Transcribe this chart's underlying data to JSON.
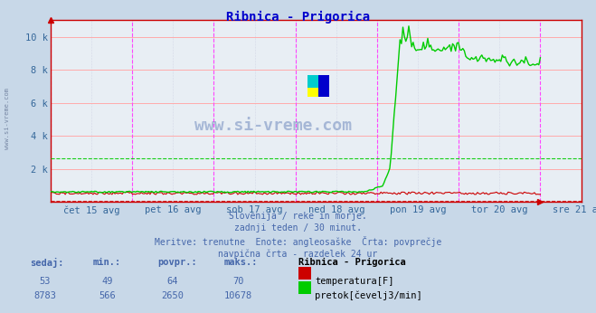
{
  "title": "Ribnica - Prigorica",
  "title_color": "#0000cc",
  "bg_color": "#c8d8e8",
  "plot_bg_color": "#e8eef4",
  "x_labels": [
    "čet 15 avg",
    "pet 16 avg",
    "sob 17 avg",
    "ned 18 avg",
    "pon 19 avg",
    "tor 20 avg",
    "sre 21 avg"
  ],
  "y_ticks": [
    0,
    2000,
    4000,
    6000,
    8000,
    10000
  ],
  "y_tick_labels": [
    "",
    "2 k",
    "4 k",
    "6 k",
    "8 k",
    "10 k"
  ],
  "ylim": [
    0,
    11000
  ],
  "grid_major_color": "#ffaaaa",
  "grid_minor_color": "#ddcccc",
  "vline_color": "#ff44ff",
  "vline_dashed_color": "#aaaacc",
  "temp_color": "#cc0000",
  "flow_color": "#00cc00",
  "temp_avg": 64,
  "flow_avg": 2650,
  "n_points": 336,
  "subtitle_lines": [
    "Slovenija / reke in morje.",
    "zadnji teden / 30 minut.",
    "Meritve: trenutne  Enote: angleosaške  Črta: povprečje",
    "navpična črta - razdelek 24 ur"
  ],
  "table_headers": [
    "sedaj:",
    "min.:",
    "povpr.:",
    "maks.:"
  ],
  "temp_row": [
    "53",
    "49",
    "64",
    "70"
  ],
  "flow_row": [
    "8783",
    "566",
    "2650",
    "10678"
  ],
  "temp_label": "temperatura[F]",
  "flow_label": "pretok[čevelj3/min]",
  "station_label": "Ribnica - Prigorica",
  "watermark": "www.si-vreme.com",
  "text_color": "#4466aa",
  "axis_label_color": "#336699",
  "border_color": "#cc0000"
}
